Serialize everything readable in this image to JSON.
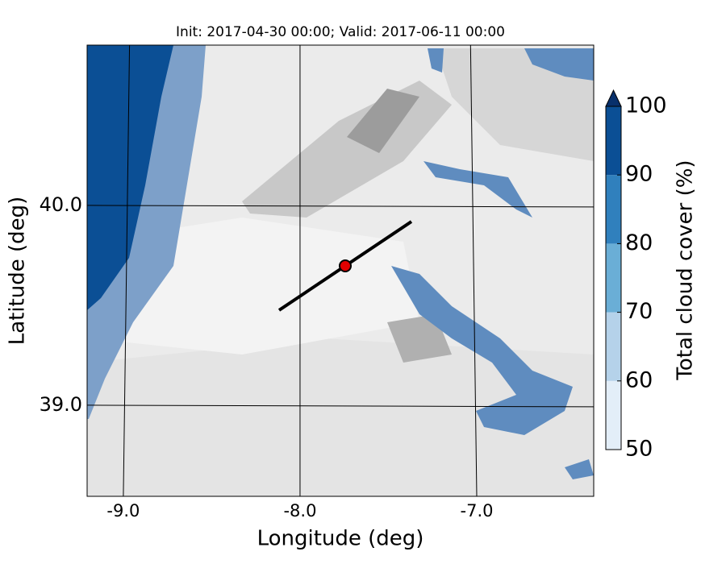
{
  "title": "Init: 2017-04-30 00:00; Valid: 2017-06-11 00:00",
  "x_label": "Longitude (deg)",
  "y_label": "Latitude (deg)",
  "xlim": [
    -9.205,
    -6.338
  ],
  "ylim": [
    38.544,
    40.802
  ],
  "xticks": [
    {
      "value": -9,
      "label": "-9.0"
    },
    {
      "value": -8,
      "label": "-8.0"
    },
    {
      "value": -7,
      "label": "-7.0"
    }
  ],
  "yticks": [
    {
      "value": 39,
      "label": "39.0"
    },
    {
      "value": 40,
      "label": "40.0"
    }
  ],
  "colorbar": {
    "label": "Total cloud cover (%)",
    "ticks": [
      50,
      60,
      70,
      80,
      90,
      100
    ],
    "colors": [
      "#e3eef8",
      "#b5d2ea",
      "#6aaed6",
      "#3080bd",
      "#0b4f95"
    ],
    "extend_color": "#08306b"
  }
}
